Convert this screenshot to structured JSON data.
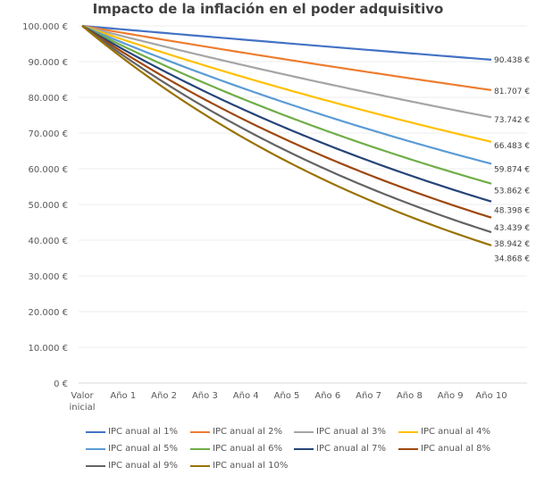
{
  "chart_data": {
    "type": "line",
    "title": "Impacto de la inflación en el poder adquisitivo",
    "categories": [
      "Valor inicial",
      "Año 1",
      "Año 2",
      "Año 3",
      "Año 4",
      "Año 5",
      "Año 6",
      "Año 7",
      "Año 8",
      "Año 9",
      "Año 10"
    ],
    "y_ticks": [
      "0 €",
      "10.000 €",
      "20.000 €",
      "30.000 €",
      "40.000 €",
      "50.000 €",
      "60.000 €",
      "70.000 €",
      "80.000 €",
      "90.000 €",
      "100.000 €"
    ],
    "ylim": [
      0,
      100000
    ],
    "grid": true,
    "legend_position": "bottom",
    "series": [
      {
        "name": "IPC anual al 1%",
        "color": "#4472C4",
        "rate": 0.01,
        "values": [
          100000,
          99010,
          98030,
          97059,
          96098,
          95147,
          94205,
          93272,
          92348,
          91434,
          90438
        ],
        "end_label": "90.438 €"
      },
      {
        "name": "IPC anual al 2%",
        "color": "#ED7D31",
        "rate": 0.02,
        "values": [
          100000,
          98039,
          96117,
          94232,
          92385,
          90573,
          88797,
          87056,
          85349,
          83676,
          81707
        ],
        "end_label": "81.707 €"
      },
      {
        "name": "IPC anual al 3%",
        "color": "#A5A5A5",
        "rate": 0.03,
        "values": [
          100000,
          97087,
          94260,
          91514,
          88849,
          86261,
          83748,
          81309,
          78941,
          76642,
          73742
        ],
        "end_label": "73.742 €"
      },
      {
        "name": "IPC anual al 4%",
        "color": "#FFC000",
        "rate": 0.04,
        "values": [
          100000,
          96154,
          92456,
          88900,
          85480,
          82193,
          79031,
          75992,
          73069,
          70259,
          66483
        ],
        "end_label": "66.483 €"
      },
      {
        "name": "IPC anual al 5%",
        "color": "#5B9BD5",
        "rate": 0.05,
        "values": [
          100000,
          95238,
          90703,
          86384,
          82270,
          78353,
          74622,
          71068,
          67684,
          64461,
          59874
        ],
        "end_label": "59.874 €"
      },
      {
        "name": "IPC anual al 6%",
        "color": "#70AD47",
        "rate": 0.06,
        "values": [
          100000,
          94340,
          89000,
          83962,
          79209,
          74726,
          70496,
          66506,
          62741,
          59190,
          53862
        ],
        "end_label": "53.862 €"
      },
      {
        "name": "IPC anual al 7%",
        "color": "#264478",
        "rate": 0.07,
        "values": [
          100000,
          93458,
          87344,
          81630,
          76290,
          71299,
          66634,
          62275,
          58201,
          54393,
          48398
        ],
        "end_label": "48.398 €"
      },
      {
        "name": "IPC anual al 8%",
        "color": "#9E480E",
        "rate": 0.08,
        "values": [
          100000,
          92593,
          85734,
          79383,
          73503,
          68058,
          63017,
          58349,
          54027,
          50025,
          43439
        ],
        "end_label": "43.439 €"
      },
      {
        "name": "IPC anual al 9%",
        "color": "#636363",
        "rate": 0.09,
        "values": [
          100000,
          91743,
          84168,
          77218,
          70843,
          64993,
          59627,
          54703,
          50187,
          46043,
          38942
        ],
        "end_label": "38.942 €"
      },
      {
        "name": "IPC anual al 10%",
        "color": "#997300",
        "rate": 0.1,
        "values": [
          100000,
          90909,
          82645,
          75131,
          68301,
          62092,
          56447,
          51316,
          46651,
          42410,
          34868
        ],
        "end_label": "34.868 €"
      }
    ]
  }
}
